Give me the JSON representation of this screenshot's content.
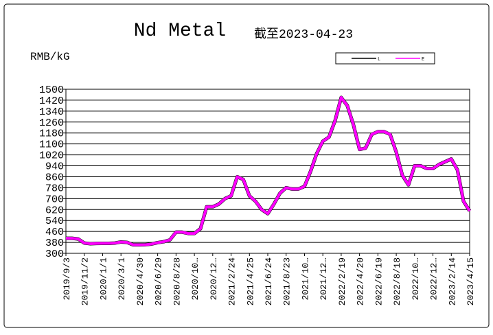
{
  "chart_data": {
    "type": "line",
    "title": "Nd Metal",
    "subtitle": "截至2023-04-23",
    "y_label": "RMB/kG",
    "categories": [
      "2019/9/3",
      null,
      null,
      "2019/11/2",
      null,
      null,
      "2020/1/1",
      null,
      null,
      "2020/3/1",
      null,
      null,
      "2020/4/30",
      null,
      null,
      "2020/6/29",
      null,
      null,
      "2020/8/28",
      null,
      null,
      "2020/10…",
      null,
      null,
      "2020/12…",
      null,
      null,
      "2021/2/24",
      null,
      null,
      "2021/4/25",
      null,
      null,
      "2021/6/24",
      null,
      null,
      "2021/8/23",
      null,
      null,
      "2021/10…",
      null,
      null,
      "2021/12…",
      null,
      null,
      "2022/2/19",
      null,
      null,
      "2022/4/20",
      null,
      null,
      "2022/6/19",
      null,
      null,
      "2022/8/18",
      null,
      null,
      "2022/10…",
      null,
      null,
      "2022/12…",
      null,
      null,
      "2023/2/14",
      null,
      null,
      "2023/4/15"
    ],
    "series": [
      {
        "name": "L",
        "color": "#000000",
        "values": [
          410,
          410,
          405,
          375,
          370,
          372,
          373,
          373,
          375,
          383,
          380,
          362,
          362,
          363,
          368,
          378,
          385,
          398,
          455,
          455,
          445,
          445,
          480,
          640,
          640,
          660,
          700,
          720,
          860,
          840,
          720,
          680,
          620,
          590,
          660,
          740,
          780,
          770,
          770,
          790,
          900,
          1030,
          1120,
          1150,
          1270,
          1440,
          1380,
          1240,
          1060,
          1070,
          1170,
          1190,
          1190,
          1170,
          1040,
          870,
          800,
          940,
          940,
          920,
          920,
          950,
          970,
          990,
          910,
          680,
          610
        ]
      },
      {
        "name": "E",
        "color": "#ff00ff",
        "values": [
          410,
          410,
          405,
          375,
          370,
          372,
          373,
          373,
          375,
          383,
          380,
          362,
          362,
          363,
          368,
          378,
          385,
          398,
          455,
          455,
          445,
          445,
          480,
          640,
          640,
          660,
          700,
          720,
          860,
          840,
          720,
          680,
          620,
          590,
          660,
          740,
          780,
          770,
          770,
          790,
          900,
          1030,
          1120,
          1150,
          1270,
          1440,
          1380,
          1240,
          1060,
          1070,
          1170,
          1190,
          1190,
          1170,
          1040,
          870,
          800,
          940,
          940,
          920,
          920,
          950,
          970,
          990,
          910,
          680,
          610
        ]
      }
    ],
    "ylim": [
      300,
      1500
    ],
    "yticks": [
      300,
      380,
      460,
      540,
      620,
      700,
      780,
      860,
      940,
      1020,
      1100,
      1180,
      1260,
      1340,
      1420,
      1500
    ],
    "grid": true,
    "legend": "top-right"
  }
}
